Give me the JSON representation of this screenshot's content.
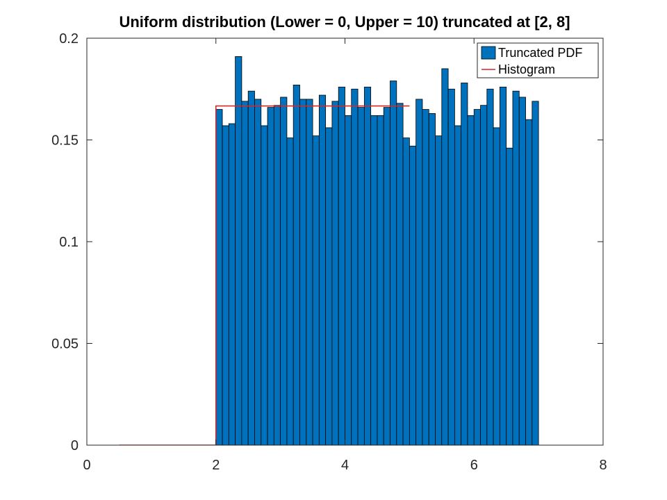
{
  "chart_data": {
    "type": "bar",
    "title": "Uniform distribution (Lower = 0, Upper = 10) truncated at [2, 8]",
    "xlim": [
      0,
      8
    ],
    "ylim": [
      0,
      0.2
    ],
    "xticks": [
      0,
      2,
      4,
      6,
      8
    ],
    "xtick_labels": [
      "0",
      "2",
      "4",
      "6",
      "8"
    ],
    "yticks": [
      0,
      0.05,
      0.1,
      0.15,
      0.2
    ],
    "ytick_labels": [
      "0",
      "0.05",
      "0.1",
      "0.15",
      "0.2"
    ],
    "grid": false,
    "legend_position": "top-right",
    "legend": [
      {
        "label": "Truncated PDF",
        "kind": "patch",
        "color": "#0072BD"
      },
      {
        "label": "Histogram",
        "kind": "line",
        "color": "#D62728"
      }
    ],
    "bar_series": {
      "name": "Truncated PDF",
      "color": "#0072BD",
      "bin_start": 2,
      "bin_width": 0.1,
      "values": [
        0.165,
        0.157,
        0.158,
        0.191,
        0.169,
        0.174,
        0.17,
        0.157,
        0.166,
        0.167,
        0.171,
        0.151,
        0.177,
        0.17,
        0.17,
        0.152,
        0.172,
        0.156,
        0.169,
        0.176,
        0.162,
        0.175,
        0.166,
        0.176,
        0.162,
        0.162,
        0.166,
        0.179,
        0.168,
        0.151,
        0.147,
        0.17,
        0.165,
        0.163,
        0.152,
        0.185,
        0.175,
        0.157,
        0.178,
        0.162,
        0.165,
        0.167,
        0.175,
        0.156,
        0.176,
        0.146,
        0.174,
        0.171,
        0.16,
        0.169
      ]
    },
    "line_series": {
      "name": "Histogram",
      "color": "#D62728",
      "x": [
        0.5,
        2,
        2,
        5
      ],
      "y": [
        0,
        0,
        0.1667,
        0.1667
      ]
    }
  }
}
